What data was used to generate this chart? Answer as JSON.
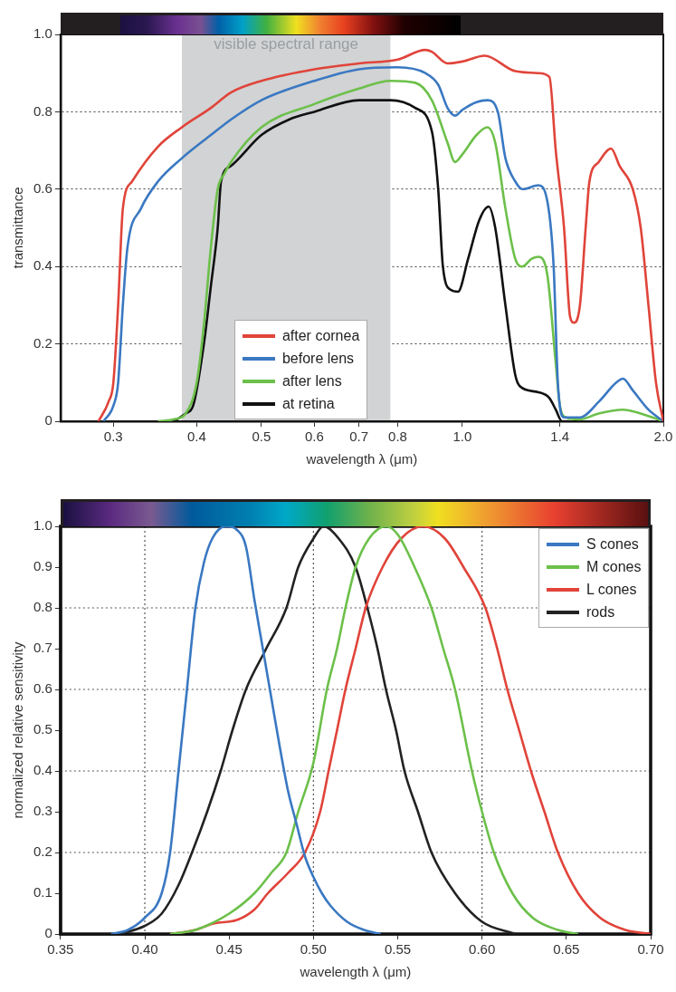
{
  "chart_data": [
    {
      "type": "line",
      "xlabel": "wavelength λ (μm)",
      "ylabel": "transmittance",
      "log": "x",
      "xlim": [
        0.25,
        2.0
      ],
      "ylim": [
        0,
        1.0
      ],
      "xticks": [
        0.3,
        0.4,
        0.5,
        0.6,
        0.7,
        0.8,
        {
          "value": 1.0,
          "label": "1.0"
        },
        1.4,
        {
          "value": 2.0,
          "label": "2.0"
        }
      ],
      "yticks": [
        0,
        0.2,
        0.4,
        0.6,
        0.8,
        {
          "value": 1.0,
          "label": "1.0"
        }
      ],
      "grid": "y",
      "legend": "bottom",
      "bands": [
        {
          "axis": "x",
          "from": 0.38,
          "to": 0.78,
          "label": "visible spectral range",
          "color": "#d1d3d4"
        }
      ],
      "series": [
        {
          "name": "after cornea",
          "color": "#e0443a",
          "x": [
            0.285,
            0.295,
            0.3,
            0.305,
            0.31,
            0.32,
            0.35,
            0.38,
            0.42,
            0.45,
            0.5,
            0.6,
            0.7,
            0.8,
            0.88,
            0.9,
            0.95,
            1.0,
            1.08,
            1.2,
            1.3,
            1.35,
            1.38,
            1.42,
            1.45,
            1.47,
            1.5,
            1.53,
            1.55,
            1.6,
            1.67,
            1.72,
            1.8,
            1.85,
            1.9,
            1.95,
            2.0
          ],
          "values": [
            0,
            0.05,
            0.1,
            0.3,
            0.55,
            0.62,
            0.71,
            0.76,
            0.81,
            0.85,
            0.88,
            0.91,
            0.925,
            0.935,
            0.96,
            0.955,
            0.925,
            0.93,
            0.945,
            0.905,
            0.9,
            0.89,
            0.7,
            0.5,
            0.27,
            0.255,
            0.3,
            0.5,
            0.62,
            0.67,
            0.705,
            0.66,
            0.6,
            0.5,
            0.3,
            0.1,
            0
          ]
        },
        {
          "name": "before lens",
          "color": "#3a78c2",
          "x": [
            0.29,
            0.3,
            0.305,
            0.31,
            0.315,
            0.33,
            0.35,
            0.38,
            0.42,
            0.45,
            0.5,
            0.6,
            0.7,
            0.8,
            0.88,
            0.92,
            0.95,
            0.975,
            1.0,
            1.05,
            1.09,
            1.13,
            1.16,
            1.2,
            1.23,
            1.3,
            1.34,
            1.37,
            1.39,
            1.42,
            1.5,
            1.6,
            1.7,
            1.74,
            1.8,
            1.9,
            2.0
          ],
          "values": [
            0,
            0.04,
            0.1,
            0.3,
            0.45,
            0.55,
            0.62,
            0.68,
            0.74,
            0.78,
            0.83,
            0.88,
            0.91,
            0.915,
            0.9,
            0.87,
            0.81,
            0.79,
            0.805,
            0.825,
            0.83,
            0.8,
            0.68,
            0.62,
            0.6,
            0.61,
            0.57,
            0.4,
            0.1,
            0.01,
            0.01,
            0.05,
            0.1,
            0.11,
            0.08,
            0.03,
            0
          ]
        },
        {
          "name": "after lens",
          "color": "#6cc04a",
          "x": [
            0.35,
            0.37,
            0.385,
            0.4,
            0.41,
            0.42,
            0.43,
            0.44,
            0.45,
            0.5,
            0.6,
            0.7,
            0.78,
            0.85,
            0.9,
            0.95,
            0.975,
            1.0,
            1.05,
            1.09,
            1.12,
            1.16,
            1.2,
            1.23,
            1.27,
            1.3,
            1.34,
            1.38,
            1.4,
            1.43,
            1.5,
            1.6,
            1.74,
            1.85,
            2.0
          ],
          "values": [
            0,
            0.005,
            0.02,
            0.1,
            0.25,
            0.45,
            0.6,
            0.64,
            0.67,
            0.76,
            0.82,
            0.86,
            0.88,
            0.875,
            0.83,
            0.72,
            0.67,
            0.69,
            0.74,
            0.76,
            0.72,
            0.55,
            0.42,
            0.4,
            0.42,
            0.425,
            0.38,
            0.15,
            0.04,
            0.01,
            0.005,
            0.02,
            0.03,
            0.02,
            0
          ]
        },
        {
          "name": "at retina",
          "color": "#111111",
          "x": [
            0.37,
            0.385,
            0.395,
            0.41,
            0.42,
            0.43,
            0.435,
            0.45,
            0.5,
            0.55,
            0.6,
            0.7,
            0.78,
            0.85,
            0.9,
            0.92,
            0.935,
            0.96,
            0.985,
            1.02,
            1.06,
            1.095,
            1.12,
            1.16,
            1.2,
            1.22,
            1.3,
            1.35,
            1.38,
            1.41,
            1.45
          ],
          "values": [
            0,
            0.02,
            0.04,
            0.2,
            0.35,
            0.5,
            0.62,
            0.66,
            0.74,
            0.78,
            0.8,
            0.83,
            0.83,
            0.81,
            0.75,
            0.6,
            0.4,
            0.34,
            0.335,
            0.42,
            0.52,
            0.555,
            0.5,
            0.3,
            0.12,
            0.09,
            0.075,
            0.06,
            0.03,
            0,
            0
          ]
        }
      ]
    },
    {
      "type": "line",
      "xlabel": "wavelength λ (μm)",
      "ylabel": "normalized relative sensitivity",
      "xlim": [
        0.35,
        0.7
      ],
      "ylim": [
        0,
        1.0
      ],
      "xticks": [
        {
          "value": 0.35,
          "label": "0.35"
        },
        {
          "value": 0.4,
          "label": "0.40"
        },
        {
          "value": 0.45,
          "label": "0.45"
        },
        {
          "value": 0.5,
          "label": "0.50"
        },
        {
          "value": 0.55,
          "label": "0.55"
        },
        {
          "value": 0.6,
          "label": "0.60"
        },
        {
          "value": 0.65,
          "label": "0.65"
        },
        {
          "value": 0.7,
          "label": "0.70"
        }
      ],
      "yticks": [
        0,
        0.1,
        0.2,
        0.3,
        0.4,
        0.5,
        0.6,
        0.7,
        0.8,
        0.9,
        {
          "value": 1.0,
          "label": "1.0"
        }
      ],
      "legend": "top right",
      "ref_lines": [
        {
          "axis": "x",
          "value": 0.4,
          "line_style": "dotted",
          "color": "#555555"
        },
        {
          "axis": "x",
          "value": 0.5,
          "line_style": "dotted",
          "color": "#555555"
        },
        {
          "axis": "x",
          "value": 0.6,
          "line_style": "dotted",
          "color": "#555555"
        },
        {
          "axis": "y",
          "value": 0.2,
          "line_style": "dotted",
          "color": "#555555"
        },
        {
          "axis": "y",
          "value": 0.4,
          "line_style": "dotted",
          "color": "#555555"
        },
        {
          "axis": "y",
          "value": 0.6,
          "line_style": "dotted",
          "color": "#555555"
        },
        {
          "axis": "y",
          "value": 0.8,
          "line_style": "dotted",
          "color": "#555555"
        }
      ],
      "series": [
        {
          "name": "S cones",
          "color": "#3a78c2",
          "x": [
            0.38,
            0.39,
            0.4,
            0.41,
            0.415,
            0.42,
            0.425,
            0.43,
            0.435,
            0.44,
            0.448,
            0.455,
            0.46,
            0.465,
            0.47,
            0.475,
            0.48,
            0.485,
            0.49,
            0.495,
            0.5,
            0.505,
            0.51,
            0.52,
            0.53,
            0.54
          ],
          "values": [
            0,
            0.01,
            0.04,
            0.1,
            0.2,
            0.4,
            0.6,
            0.8,
            0.91,
            0.97,
            1.0,
            0.99,
            0.95,
            0.82,
            0.7,
            0.58,
            0.46,
            0.35,
            0.27,
            0.19,
            0.14,
            0.1,
            0.07,
            0.03,
            0.01,
            0
          ]
        },
        {
          "name": "M cones",
          "color": "#6cc04a",
          "x": [
            0.415,
            0.43,
            0.45,
            0.465,
            0.475,
            0.484,
            0.491,
            0.5,
            0.508,
            0.514,
            0.519,
            0.525,
            0.533,
            0.543,
            0.55,
            0.56,
            0.57,
            0.577,
            0.584,
            0.594,
            0.6,
            0.607,
            0.618,
            0.63,
            0.645,
            0.657
          ],
          "values": [
            0,
            0.01,
            0.05,
            0.1,
            0.15,
            0.2,
            0.3,
            0.42,
            0.6,
            0.7,
            0.8,
            0.9,
            0.97,
            1.0,
            0.98,
            0.9,
            0.8,
            0.7,
            0.6,
            0.4,
            0.3,
            0.2,
            0.1,
            0.04,
            0.01,
            0
          ]
        },
        {
          "name": "L cones",
          "color": "#e0443a",
          "x": [
            0.415,
            0.43,
            0.44,
            0.455,
            0.465,
            0.473,
            0.485,
            0.495,
            0.504,
            0.509,
            0.514,
            0.519,
            0.525,
            0.531,
            0.541,
            0.552,
            0.565,
            0.578,
            0.589,
            0.602,
            0.609,
            0.615,
            0.622,
            0.629,
            0.637,
            0.645,
            0.657,
            0.67,
            0.685,
            0.7
          ],
          "values": [
            0,
            0.01,
            0.025,
            0.035,
            0.06,
            0.1,
            0.15,
            0.2,
            0.3,
            0.4,
            0.5,
            0.6,
            0.7,
            0.8,
            0.9,
            0.97,
            1.0,
            0.97,
            0.9,
            0.8,
            0.7,
            0.6,
            0.5,
            0.4,
            0.3,
            0.2,
            0.1,
            0.04,
            0.01,
            0
          ]
        },
        {
          "name": "rods",
          "color": "#222222",
          "x": [
            0.385,
            0.4,
            0.41,
            0.42,
            0.428,
            0.437,
            0.445,
            0.452,
            0.46,
            0.472,
            0.484,
            0.491,
            0.5,
            0.506,
            0.515,
            0.525,
            0.532,
            0.538,
            0.543,
            0.549,
            0.554,
            0.562,
            0.57,
            0.584,
            0.6,
            0.62
          ],
          "values": [
            0,
            0.02,
            0.05,
            0.12,
            0.2,
            0.3,
            0.4,
            0.5,
            0.6,
            0.7,
            0.8,
            0.9,
            0.97,
            1.0,
            0.97,
            0.9,
            0.8,
            0.7,
            0.6,
            0.5,
            0.4,
            0.3,
            0.2,
            0.1,
            0.03,
            0
          ]
        }
      ]
    }
  ]
}
